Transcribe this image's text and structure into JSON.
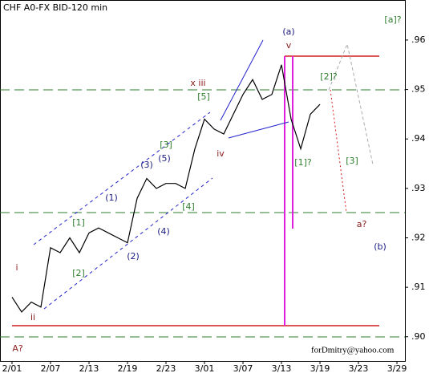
{
  "chart_data": {
    "type": "line",
    "title": "CHF A0-FX BID-120 min",
    "footer": "forDmitry@yahoo.com",
    "x": [
      0,
      1,
      2,
      3,
      4,
      5,
      6,
      7,
      8,
      9,
      10,
      11,
      12,
      13,
      14,
      15,
      16,
      17,
      18,
      19,
      20,
      21,
      22,
      23,
      24,
      25,
      26,
      27,
      28,
      29,
      30,
      31,
      32
    ],
    "series": [
      {
        "color": "#000000",
        "values": [
          0.908,
          0.905,
          0.907,
          0.906,
          0.918,
          0.917,
          0.92,
          0.917,
          0.921,
          0.922,
          0.921,
          0.92,
          0.919,
          0.928,
          0.932,
          0.93,
          0.931,
          0.931,
          0.93,
          0.938,
          0.944,
          0.942,
          0.941,
          0.945,
          0.949,
          0.952,
          0.948,
          0.949,
          0.955,
          0.944,
          0.938,
          0.945,
          0.947
        ]
      }
    ],
    "xlim": [
      -1.25,
      40.83
    ],
    "xticks": [
      {
        "value": 0,
        "label": "2/01"
      },
      {
        "value": 4,
        "label": "2/07"
      },
      {
        "value": 8,
        "label": "2/13"
      },
      {
        "value": 12,
        "label": "2/19"
      },
      {
        "value": 16,
        "label": "2/23"
      },
      {
        "value": 20,
        "label": "3/01"
      },
      {
        "value": 24,
        "label": "3/07"
      },
      {
        "value": 28,
        "label": "3/13"
      },
      {
        "value": 32,
        "label": "3/19"
      },
      {
        "value": 36,
        "label": "3/23"
      },
      {
        "value": 40,
        "label": "3/29"
      }
    ],
    "ylim": [
      0.8951,
      0.9681
    ],
    "yticks": [
      {
        "value": 0.9,
        "label": ".90"
      },
      {
        "value": 0.91,
        "label": ".91"
      },
      {
        "value": 0.92,
        "label": ".92"
      },
      {
        "value": 0.93,
        "label": ".93"
      },
      {
        "value": 0.94,
        "label": ".94"
      },
      {
        "value": 0.95,
        "label": ".95"
      },
      {
        "value": 0.96,
        "label": ".96"
      }
    ],
    "annotations": [
      {
        "text": "(a)",
        "color": "#1a1a80"
      },
      {
        "text": "v",
        "color": "#8b1a1a"
      },
      {
        "text": "[a]?",
        "color": "#2e7d2e"
      },
      {
        "text": "x iii",
        "color": "#8b1a1a"
      },
      {
        "text": "[5]",
        "color": "#2e7d2e"
      },
      {
        "text": "[2]?",
        "color": "#2e7d2e"
      },
      {
        "text": "iv",
        "color": "#8b1a1a"
      },
      {
        "text": "[1]?",
        "color": "#2e7d2e"
      },
      {
        "text": "[3]",
        "color": "#2e7d2e"
      },
      {
        "text": "[3]",
        "color": "#2e7d2e"
      },
      {
        "text": "(3)",
        "color": "#1a1a80"
      },
      {
        "text": "(5)",
        "color": "#1a1a80"
      },
      {
        "text": "(1)",
        "color": "#1a1a80"
      },
      {
        "text": "[4]",
        "color": "#2e7d2e"
      },
      {
        "text": "[1]",
        "color": "#2e7d2e"
      },
      {
        "text": "(4)",
        "color": "#1a1a80"
      },
      {
        "text": "(2)",
        "color": "#1a1a80"
      },
      {
        "text": "[2]",
        "color": "#2e7d2e"
      },
      {
        "text": "a?",
        "color": "#8b1a1a"
      },
      {
        "text": "(b)",
        "color": "#1a1a80"
      },
      {
        "text": "i",
        "color": "#8b1a1a"
      },
      {
        "text": "ii",
        "color": "#8b1a1a"
      },
      {
        "text": "A?",
        "color": "#8b1a1a"
      }
    ]
  }
}
